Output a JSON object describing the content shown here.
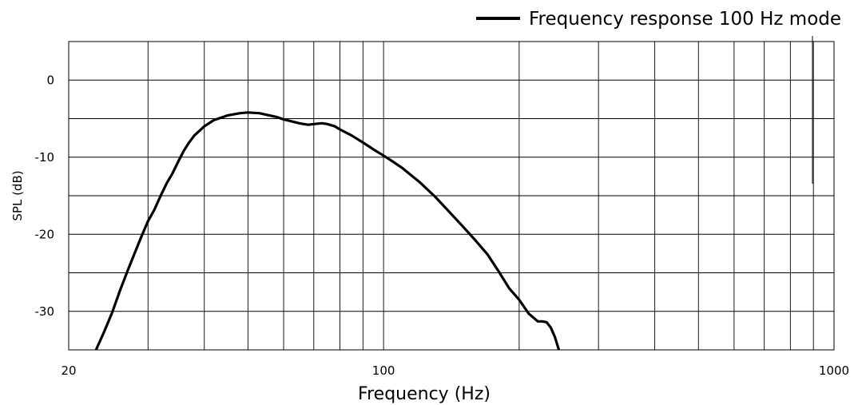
{
  "chart_data": {
    "type": "line",
    "title": "",
    "xlabel": "Frequency (Hz)",
    "ylabel": "SPL (dB)",
    "x_scale": "log",
    "xlim": [
      20,
      1000
    ],
    "ylim": [
      -35,
      5
    ],
    "x_tick_labels": [
      {
        "value": 20,
        "label": "20"
      },
      {
        "value": 100,
        "label": "100"
      },
      {
        "value": 1000,
        "label": "1000"
      }
    ],
    "y_tick_labels": [
      {
        "value": 0,
        "label": "0"
      },
      {
        "value": -10,
        "label": "-10"
      },
      {
        "value": -20,
        "label": "-20"
      },
      {
        "value": -30,
        "label": "-30"
      }
    ],
    "x_gridlines": [
      30,
      40,
      50,
      60,
      70,
      80,
      90,
      100,
      200,
      300,
      400,
      500,
      600,
      700,
      800,
      900,
      1000
    ],
    "y_gridlines": [
      5,
      0,
      -5,
      -10,
      -15,
      -20,
      -25,
      -30,
      -35
    ],
    "grid": true,
    "legend_position": "top-right",
    "series": [
      {
        "name": "Frequency response 100 Hz mode",
        "color": "#000000",
        "x": [
          23,
          24,
          25,
          26,
          27,
          28,
          29,
          30,
          31,
          32,
          33,
          34,
          35,
          36,
          37,
          38,
          40,
          42,
          45,
          48,
          50,
          53,
          55,
          58,
          60,
          62,
          65,
          68,
          70,
          73,
          75,
          78,
          80,
          85,
          90,
          95,
          100,
          105,
          110,
          120,
          130,
          140,
          150,
          160,
          170,
          180,
          190,
          200,
          210,
          220,
          225,
          230,
          235,
          240,
          245
        ],
        "y": [
          -35,
          -32.6,
          -30.1,
          -27.3,
          -24.8,
          -22.5,
          -20.3,
          -18.3,
          -16.8,
          -15,
          -13.4,
          -12.1,
          -10.6,
          -9.2,
          -8.1,
          -7.2,
          -6,
          -5.2,
          -4.6,
          -4.3,
          -4.2,
          -4.3,
          -4.5,
          -4.8,
          -5.1,
          -5.3,
          -5.6,
          -5.8,
          -5.7,
          -5.6,
          -5.7,
          -6,
          -6.4,
          -7.2,
          -8.1,
          -9,
          -9.8,
          -10.6,
          -11.4,
          -13.2,
          -15.1,
          -17.1,
          -19,
          -20.8,
          -22.6,
          -24.8,
          -27,
          -28.5,
          -30.3,
          -31.3,
          -31.3,
          -31.4,
          -32.1,
          -33.3,
          -35
        ]
      }
    ]
  }
}
